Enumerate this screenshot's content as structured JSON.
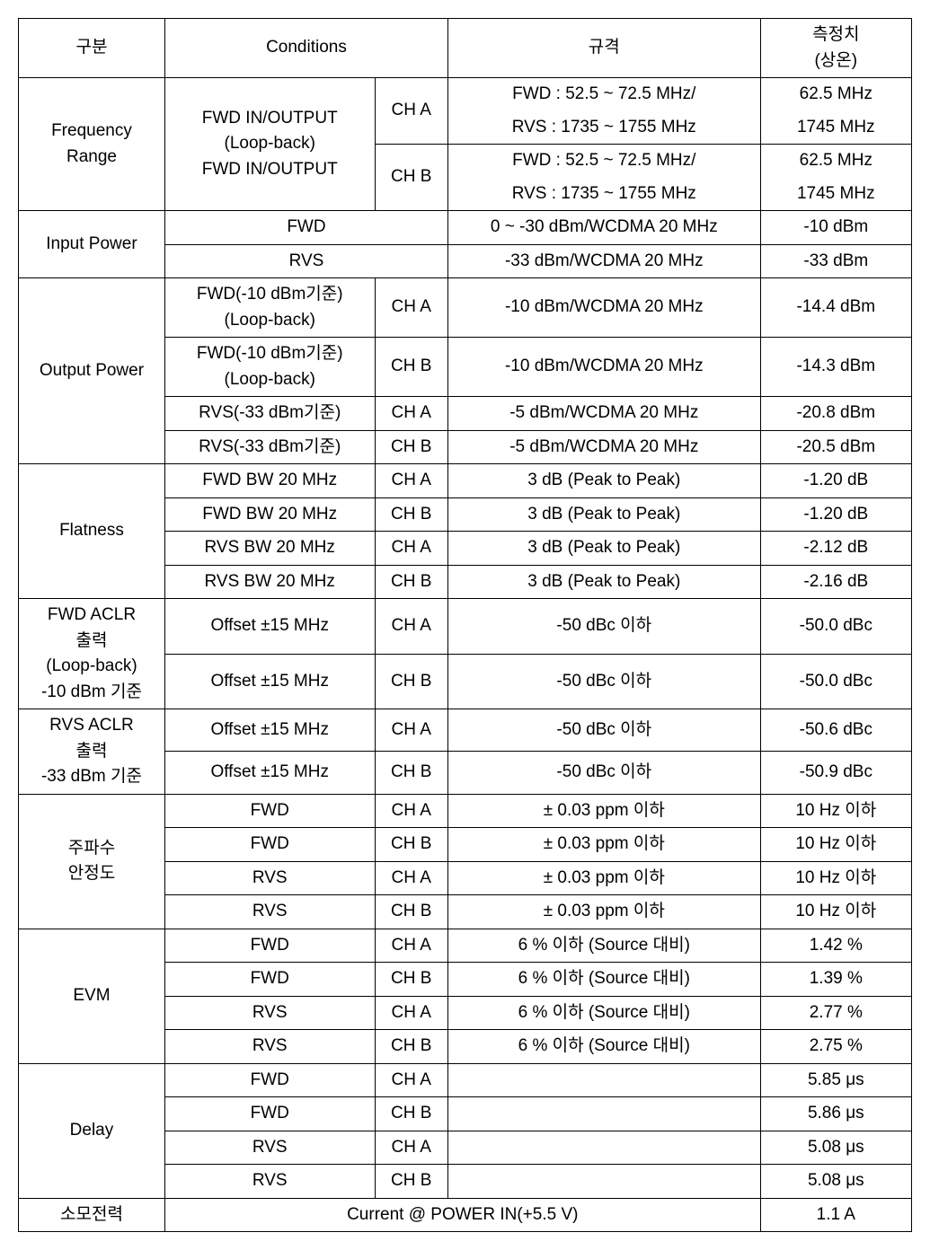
{
  "headers": {
    "category": "구분",
    "conditions": "Conditions",
    "spec": "규격",
    "measured": "측정치\n(상온)"
  },
  "freqRange": {
    "label": "Frequency\nRange",
    "cond": "FWD IN/OUTPUT\n(Loop-back)\nFWD IN/OUTPUT",
    "chA": "CH A",
    "chB": "CH B",
    "specA1": "FWD : 52.5 ~ 72.5 MHz/",
    "specA2": "RVS : 1735 ~ 1755 MHz",
    "specB1": "FWD : 52.5 ~ 72.5 MHz/",
    "specB2": "RVS : 1735 ~ 1755 MHz",
    "measA1": "62.5 MHz",
    "measA2": "1745 MHz",
    "measB1": "62.5 MHz",
    "measB2": "1745 MHz"
  },
  "inputPower": {
    "label": "Input Power",
    "fwd": "FWD",
    "rvs": "RVS",
    "specF": "0 ~ -30 dBm/WCDMA 20 MHz",
    "specR": "-33 dBm/WCDMA 20 MHz",
    "measF": "-10 dBm",
    "measR": "-33 dBm"
  },
  "outputPower": {
    "label": "Output Power",
    "cond1": "FWD(-10 dBm기준)\n(Loop-back)",
    "cond2": "FWD(-10 dBm기준)\n(Loop-back)",
    "cond3": "RVS(-33 dBm기준)",
    "cond4": "RVS(-33 dBm기준)",
    "chA": "CH A",
    "chB": "CH B",
    "spec12": "-10 dBm/WCDMA 20 MHz",
    "spec34": "-5 dBm/WCDMA 20 MHz",
    "meas1": "-14.4 dBm",
    "meas2": "-14.3 dBm",
    "meas3": "-20.8 dBm",
    "meas4": "-20.5 dBm"
  },
  "flatness": {
    "label": "Flatness",
    "condF": "FWD BW 20 MHz",
    "condR": "RVS BW 20 MHz",
    "chA": "CH A",
    "chB": "CH B",
    "spec": "3 dB (Peak to Peak)",
    "meas1": "-1.20 dB",
    "meas2": "-1.20 dB",
    "meas3": "-2.12 dB",
    "meas4": "-2.16 dB"
  },
  "fwdAclr": {
    "label": "FWD ACLR\n출력\n(Loop-back)\n-10 dBm 기준",
    "cond": "Offset ±15 MHz",
    "chA": "CH A",
    "chB": "CH B",
    "spec": "-50 dBc 이하",
    "measA": "-50.0 dBc",
    "measB": "-50.0 dBc"
  },
  "rvsAclr": {
    "label": "RVS ACLR\n출력\n-33 dBm 기준",
    "cond": "Offset ±15 MHz",
    "chA": "CH A",
    "chB": "CH B",
    "spec": "-50 dBc 이하",
    "measA": "-50.6 dBc",
    "measB": "-50.9 dBc"
  },
  "freqStab": {
    "label": "주파수\n안정도",
    "fwd": "FWD",
    "rvs": "RVS",
    "chA": "CH A",
    "chB": "CH B",
    "spec": "± 0.03 ppm 이하",
    "meas1": "10 Hz  이하",
    "meas": "10 Hz 이하"
  },
  "evm": {
    "label": "EVM",
    "fwd": "FWD",
    "rvs": "RVS",
    "chA": "CH A",
    "chB": "CH B",
    "spec": "6 % 이하 (Source 대비)",
    "meas1": "1.42 %",
    "meas2": "1.39 %",
    "meas3": "2.77 %",
    "meas4": "2.75 %"
  },
  "delay": {
    "label": "Delay",
    "fwd": "FWD",
    "rvs": "RVS",
    "chA": "CH A",
    "chB": "CH B",
    "meas1": "5.85 μs",
    "meas2": "5.86 μs",
    "meas3": "5.08 μs",
    "meas4": "5.08 μs"
  },
  "power": {
    "label": "소모전력",
    "cond": "Current @ POWER IN(+5.5 V)",
    "meas": "1.1 A"
  }
}
